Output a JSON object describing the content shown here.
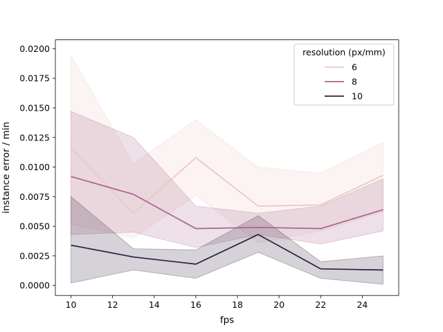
{
  "chart_data": {
    "type": "line",
    "title": "",
    "xlabel": "fps",
    "ylabel": "instance error / min",
    "xlim": [
      9.25,
      25.75
    ],
    "ylim": [
      -0.00085,
      0.02075
    ],
    "x": [
      10,
      13,
      16,
      19,
      22,
      25
    ],
    "xticks": [
      10,
      12,
      14,
      16,
      18,
      20,
      22,
      24
    ],
    "yticks": [
      0.0,
      0.0025,
      0.005,
      0.0075,
      0.01,
      0.0125,
      0.015,
      0.0175,
      0.02
    ],
    "ytick_labels": [
      "0.0000",
      "0.0025",
      "0.0050",
      "0.0075",
      "0.0100",
      "0.0125",
      "0.0150",
      "0.0175",
      "0.0200"
    ],
    "grid": false,
    "legend": {
      "title": "resolution (px/mm)",
      "position": "top-right"
    },
    "series": [
      {
        "name": "6",
        "color": "#ebc7c0",
        "values": [
          0.0116,
          0.0061,
          0.0108,
          0.0067,
          0.0068,
          0.0093
        ],
        "ci_low": [
          0.0052,
          0.004,
          0.0076,
          0.0036,
          0.0046,
          0.0062
        ],
        "ci_high": [
          0.0194,
          0.0103,
          0.014,
          0.01,
          0.0095,
          0.0121
        ]
      },
      {
        "name": "8",
        "color": "#a8638b",
        "values": [
          0.0092,
          0.0077,
          0.0048,
          0.0049,
          0.0048,
          0.0064
        ],
        "ci_low": [
          0.0043,
          0.0045,
          0.0032,
          0.0043,
          0.0035,
          0.0046
        ],
        "ci_high": [
          0.0147,
          0.0125,
          0.0067,
          0.0061,
          0.0067,
          0.009
        ]
      },
      {
        "name": "10",
        "color": "#2b1d3e",
        "values": [
          0.0034,
          0.0024,
          0.0018,
          0.0043,
          0.0014,
          0.0013
        ],
        "ci_low": [
          0.0002,
          0.0013,
          0.0006,
          0.0028,
          0.0006,
          0.0001
        ],
        "ci_high": [
          0.0075,
          0.0031,
          0.003,
          0.0059,
          0.002,
          0.0025
        ]
      }
    ]
  }
}
